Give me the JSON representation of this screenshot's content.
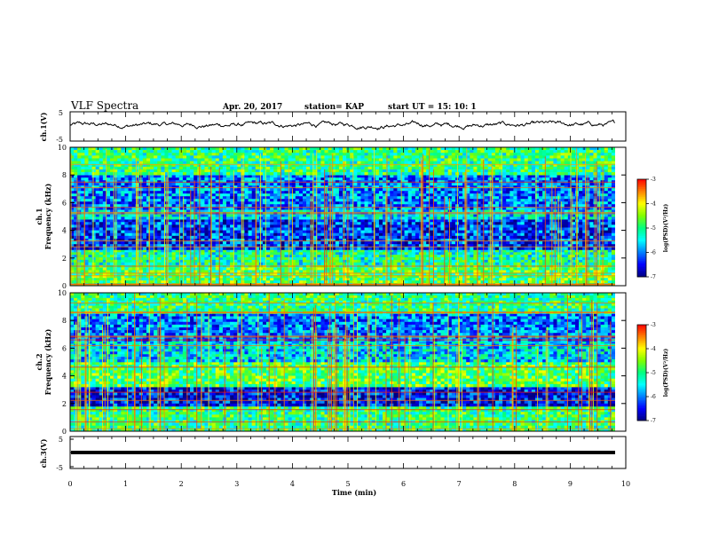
{
  "header": {
    "title": "VLF Spectra",
    "date": "Apr. 20, 2017",
    "station": "station= KAP",
    "start_ut": "start UT =   15: 10: 1"
  },
  "panels": {
    "ch1_wave": {
      "ylabel": "ch.1(V)",
      "ticks": [
        "5",
        "-5"
      ]
    },
    "ch1_spec": {
      "ylabel_top": "ch.1",
      "ylabel": "Frequency (kHz)"
    },
    "ch2_spec": {
      "ylabel_top": "ch.2",
      "ylabel": "Frequency (kHz)"
    },
    "ch3_wave": {
      "ylabel": "ch.3(V)",
      "ticks": [
        "5",
        "-5"
      ]
    }
  },
  "colorbar": {
    "label": "log(PSD)(V²/Hz)",
    "ticks": [
      "-3",
      "-4",
      "-5",
      "-6",
      "-7"
    ],
    "colors": [
      "#000080",
      "#0000ff",
      "#0080ff",
      "#00ffff",
      "#00ff80",
      "#80ff00",
      "#ffff00",
      "#ff8000",
      "#ff0000",
      "#ffffff"
    ]
  },
  "chart_data": [
    {
      "type": "line",
      "name": "ch1-waveform",
      "xlabel": "",
      "ylabel": "ch.1(V)",
      "xlim": [
        0,
        10
      ],
      "ylim": [
        -5,
        5
      ],
      "approx_values": {
        "mean": 0.5,
        "range": [
          -1.5,
          2.2
        ]
      },
      "x_end": 9.8
    },
    {
      "type": "heatmap",
      "name": "ch1-spectrogram",
      "ylabel": "Frequency (kHz)",
      "xlim": [
        0,
        10
      ],
      "ylim": [
        0,
        10
      ],
      "yticks": [
        "0",
        "2",
        "4",
        "6",
        "8",
        "10"
      ],
      "zlim": [
        -7,
        -3
      ],
      "zlabel": "log(PSD)(V²/Hz)",
      "bands": [
        {
          "f_range": [
            0,
            1.5
          ],
          "level": -4.8
        },
        {
          "f_range": [
            1.5,
            2.6
          ],
          "level": -5.2
        },
        {
          "f_range": [
            2.6,
            4.8
          ],
          "level": -6.3
        },
        {
          "f_range": [
            4.8,
            5.5
          ],
          "level": -5.6
        },
        {
          "f_range": [
            5.5,
            8.0
          ],
          "level": -6.0
        },
        {
          "f_range": [
            8.0,
            10
          ],
          "level": -5.0
        }
      ]
    },
    {
      "type": "heatmap",
      "name": "ch2-spectrogram",
      "ylabel": "Frequency (kHz)",
      "xlim": [
        0,
        10
      ],
      "ylim": [
        0,
        10
      ],
      "yticks": [
        "0",
        "2",
        "4",
        "6",
        "8",
        "10"
      ],
      "zlim": [
        -7,
        -3
      ],
      "zlabel": "log(PSD)(V²/Hz)",
      "bands": [
        {
          "f_range": [
            0,
            1.8
          ],
          "level": -5.0
        },
        {
          "f_range": [
            1.8,
            3.2
          ],
          "level": -6.5
        },
        {
          "f_range": [
            3.2,
            5.0
          ],
          "level": -4.8
        },
        {
          "f_range": [
            5.0,
            6.5
          ],
          "level": -5.6
        },
        {
          "f_range": [
            6.5,
            8.5
          ],
          "level": -6.0
        },
        {
          "f_range": [
            8.5,
            10
          ],
          "level": -5.0
        }
      ]
    },
    {
      "type": "line",
      "name": "ch3-waveform",
      "ylabel": "ch.3(V)",
      "xlim": [
        0,
        10
      ],
      "ylim": [
        -5,
        5
      ],
      "approx_values": {
        "constant": 0
      }
    }
  ],
  "xaxis": {
    "label": "Time (min)",
    "ticks": [
      "0",
      "1",
      "2",
      "3",
      "4",
      "5",
      "6",
      "7",
      "8",
      "9",
      "10"
    ]
  }
}
